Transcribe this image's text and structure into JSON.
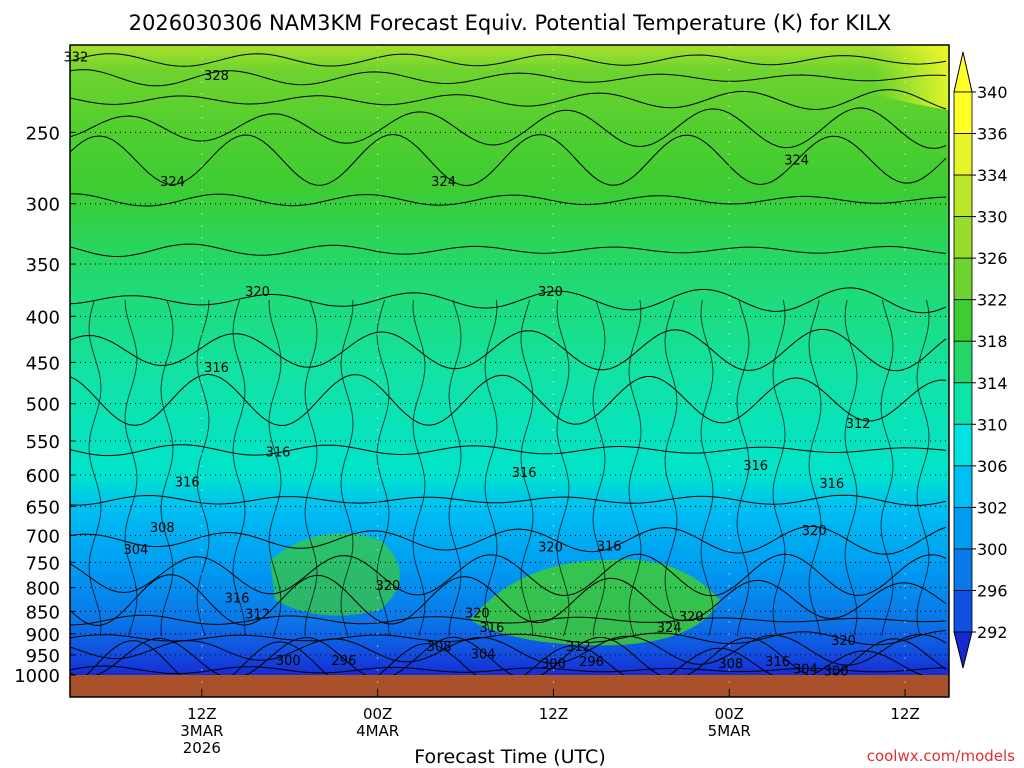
{
  "chart_data": {
    "type": "heatmap",
    "title": "2026030306 NAM3KM Forecast Equiv. Potential Temperature (K) for KILX",
    "xlabel": "Forecast Time (UTC)",
    "credit": "coolwx.com/models",
    "y_ticks": [
      "250",
      "300",
      "350",
      "400",
      "450",
      "500",
      "550",
      "600",
      "650",
      "700",
      "750",
      "800",
      "850",
      "900",
      "950",
      "1000"
    ],
    "ylim": [
      1000,
      200
    ],
    "y_scale": "log",
    "x_ticks": [
      {
        "hour": 12,
        "lines": [
          "12Z",
          "3MAR",
          "2026"
        ]
      },
      {
        "hour": 24,
        "lines": [
          "00Z",
          "4MAR"
        ]
      },
      {
        "hour": 36,
        "lines": [
          "12Z"
        ]
      },
      {
        "hour": 48,
        "lines": [
          "00Z",
          "5MAR"
        ]
      },
      {
        "hour": 60,
        "lines": [
          "12Z"
        ]
      }
    ],
    "xlim": [
      3,
      63
    ],
    "grid": true,
    "colorbar": {
      "levels": [
        "340",
        "336",
        "334",
        "330",
        "326",
        "322",
        "318",
        "314",
        "310",
        "306",
        "302",
        "300",
        "296",
        "292"
      ],
      "colors": [
        "#ffff28",
        "#e6f529",
        "#bce62c",
        "#98dc2d",
        "#6ed32e",
        "#3dcc32",
        "#25d766",
        "#10e3a9",
        "#00e3e0",
        "#00bff2",
        "#009cf2",
        "#0a78e8",
        "#1150e0",
        "#1628d2"
      ]
    },
    "contour_labels": [
      {
        "text": "332",
        "x": 3.4,
        "p": 206
      },
      {
        "text": "328",
        "x": 13.0,
        "p": 216
      },
      {
        "text": "324",
        "x": 10.0,
        "p": 283
      },
      {
        "text": "324",
        "x": 28.5,
        "p": 283
      },
      {
        "text": "324",
        "x": 52.6,
        "p": 268
      },
      {
        "text": "320",
        "x": 15.8,
        "p": 375
      },
      {
        "text": "320",
        "x": 35.8,
        "p": 375
      },
      {
        "text": "316",
        "x": 13.0,
        "p": 455
      },
      {
        "text": "316",
        "x": 17.2,
        "p": 565
      },
      {
        "text": "316",
        "x": 11.0,
        "p": 610
      },
      {
        "text": "316",
        "x": 34.0,
        "p": 595
      },
      {
        "text": "316",
        "x": 49.8,
        "p": 585
      },
      {
        "text": "316",
        "x": 55.0,
        "p": 612
      },
      {
        "text": "312",
        "x": 56.8,
        "p": 525
      },
      {
        "text": "308",
        "x": 9.3,
        "p": 685
      },
      {
        "text": "304",
        "x": 7.5,
        "p": 725
      },
      {
        "text": "320",
        "x": 35.8,
        "p": 720
      },
      {
        "text": "316",
        "x": 39.8,
        "p": 718
      },
      {
        "text": "320",
        "x": 53.8,
        "p": 690
      },
      {
        "text": "320",
        "x": 24.7,
        "p": 795
      },
      {
        "text": "316",
        "x": 14.4,
        "p": 820
      },
      {
        "text": "312",
        "x": 15.8,
        "p": 855
      },
      {
        "text": "320",
        "x": 30.8,
        "p": 852
      },
      {
        "text": "316",
        "x": 31.8,
        "p": 885
      },
      {
        "text": "324",
        "x": 43.9,
        "p": 885
      },
      {
        "text": "320",
        "x": 45.4,
        "p": 860
      },
      {
        "text": "320",
        "x": 55.8,
        "p": 915
      },
      {
        "text": "308",
        "x": 28.2,
        "p": 928
      },
      {
        "text": "304",
        "x": 31.2,
        "p": 947
      },
      {
        "text": "312",
        "x": 37.7,
        "p": 928
      },
      {
        "text": "300",
        "x": 17.9,
        "p": 962
      },
      {
        "text": "296",
        "x": 21.7,
        "p": 962
      },
      {
        "text": "300",
        "x": 36.0,
        "p": 970
      },
      {
        "text": "296",
        "x": 38.6,
        "p": 965
      },
      {
        "text": "308",
        "x": 48.1,
        "p": 970
      },
      {
        "text": "316",
        "x": 51.3,
        "p": 965
      },
      {
        "text": "304",
        "x": 53.2,
        "p": 983
      },
      {
        "text": "300",
        "x": 55.3,
        "p": 988
      }
    ]
  }
}
